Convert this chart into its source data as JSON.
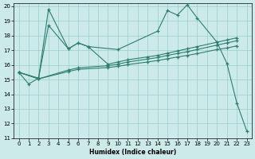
{
  "xlabel": "Humidex (Indice chaleur)",
  "xlim": [
    -0.5,
    23.5
  ],
  "ylim": [
    11,
    20.2
  ],
  "yticks": [
    11,
    12,
    13,
    14,
    15,
    16,
    17,
    18,
    19,
    20
  ],
  "xticks": [
    0,
    1,
    2,
    3,
    4,
    5,
    6,
    7,
    8,
    9,
    10,
    11,
    12,
    13,
    14,
    15,
    16,
    17,
    18,
    19,
    20,
    21,
    22,
    23
  ],
  "background_color": "#cceaea",
  "grid_color": "#99cccc",
  "line_color": "#2e7d6e",
  "line1_x": [
    0,
    1,
    2,
    3,
    5,
    6,
    7,
    10,
    14,
    15,
    16,
    17,
    18,
    20,
    21,
    22,
    23
  ],
  "line1_y": [
    15.5,
    14.7,
    15.1,
    19.8,
    17.1,
    17.5,
    17.25,
    17.05,
    18.3,
    19.7,
    19.4,
    20.1,
    19.2,
    17.55,
    16.1,
    13.4,
    11.5
  ],
  "line2_x": [
    0,
    2,
    3,
    5,
    6,
    7,
    9,
    10,
    11,
    13,
    14,
    15,
    16,
    17,
    18,
    20,
    21,
    22
  ],
  "line2_y": [
    15.5,
    15.1,
    18.7,
    17.1,
    17.5,
    17.25,
    16.05,
    16.2,
    16.35,
    16.55,
    16.65,
    16.8,
    16.95,
    17.1,
    17.25,
    17.55,
    17.7,
    17.85
  ],
  "line3_x": [
    0,
    2,
    5,
    6,
    9,
    10,
    11,
    13,
    14,
    15,
    16,
    17,
    18,
    20,
    21,
    22
  ],
  "line3_y": [
    15.5,
    15.05,
    15.65,
    15.8,
    15.95,
    16.05,
    16.2,
    16.4,
    16.5,
    16.65,
    16.78,
    16.9,
    17.05,
    17.35,
    17.5,
    17.65
  ],
  "line4_x": [
    0,
    2,
    5,
    6,
    9,
    10,
    11,
    13,
    14,
    15,
    16,
    17,
    18,
    20,
    21,
    22
  ],
  "line4_y": [
    15.5,
    15.05,
    15.55,
    15.7,
    15.82,
    15.9,
    16.02,
    16.2,
    16.3,
    16.42,
    16.54,
    16.65,
    16.77,
    17.05,
    17.15,
    17.3
  ]
}
